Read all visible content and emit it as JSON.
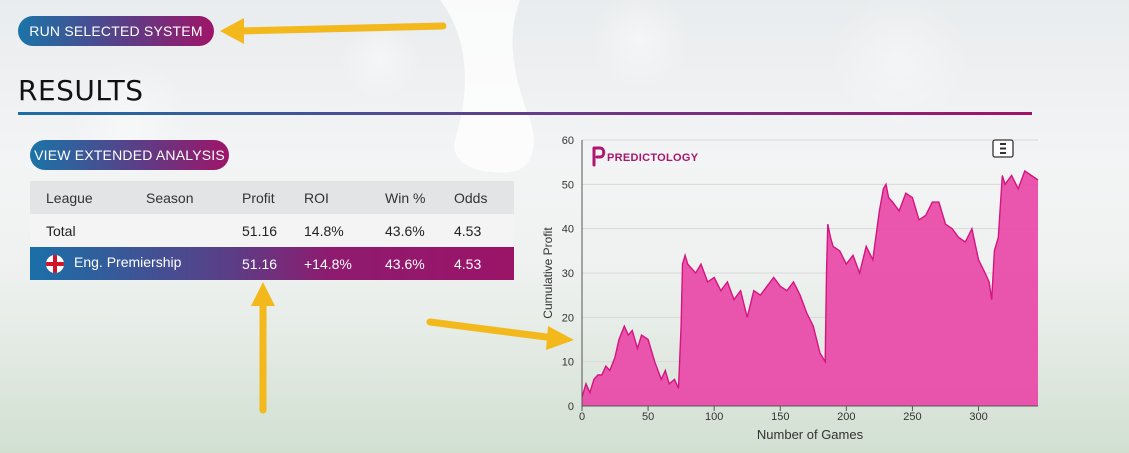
{
  "buttons": {
    "run_selected": "RUN SELECTED SYSTEM",
    "view_extended": "VIEW EXTENDED ANALYSIS"
  },
  "results": {
    "title": "RESULTS",
    "columns": [
      "League",
      "Season",
      "Profit",
      "ROI",
      "Win %",
      "Odds"
    ],
    "total": {
      "label": "Total",
      "season": "",
      "profit": "51.16",
      "roi": "14.8%",
      "win": "43.6%",
      "odds": "4.53"
    },
    "rows": [
      {
        "league": "Eng. Premiership",
        "flag": "england-flag-icon",
        "season": "",
        "profit": "51.16",
        "roi": "+14.8%",
        "win": "43.6%",
        "odds": "4.53"
      }
    ]
  },
  "colors": {
    "gradient_start": "#1a74a8",
    "gradient_end": "#9e1568",
    "area_fill": "#e94ca9",
    "area_stroke": "#d4157f",
    "arrow": "#f2b81c"
  },
  "chart_data": {
    "type": "area",
    "brand": "PREDICTOLOGY",
    "menu_icon": "hamburger-menu-icon",
    "xlabel": "Number of Games",
    "ylabel": "Cumulative Profit",
    "xlim": [
      0,
      345
    ],
    "ylim": [
      0,
      60
    ],
    "xticks": [
      0,
      50,
      100,
      150,
      200,
      250,
      300
    ],
    "yticks": [
      0,
      10,
      20,
      30,
      40,
      50,
      60
    ],
    "grid": true,
    "series": [
      {
        "x": [
          0,
          3,
          6,
          9,
          12,
          15,
          18,
          21,
          25,
          28,
          32,
          35,
          38,
          42,
          45,
          50,
          55,
          60,
          63,
          66,
          70,
          73,
          75,
          76,
          78,
          80,
          83,
          86,
          90,
          95,
          100,
          105,
          110,
          115,
          120,
          125,
          130,
          135,
          140,
          145,
          150,
          155,
          160,
          165,
          170,
          175,
          180,
          184,
          185,
          186,
          188,
          190,
          195,
          200,
          205,
          210,
          215,
          220,
          225,
          228,
          230,
          232,
          235,
          240,
          245,
          250,
          255,
          260,
          265,
          270,
          275,
          280,
          285,
          290,
          295,
          300,
          305,
          308,
          310,
          312,
          315,
          318,
          320,
          325,
          330,
          335,
          340,
          345
        ],
        "y": [
          2,
          5,
          3,
          6,
          7,
          7,
          9,
          8,
          11,
          15,
          18,
          16,
          17,
          13,
          16,
          15,
          10,
          6,
          8,
          5,
          6,
          4,
          18,
          32,
          34,
          32,
          31,
          30,
          32,
          28,
          29,
          26,
          28,
          24,
          26,
          20,
          26,
          25,
          27,
          29,
          27,
          26,
          28,
          25,
          21,
          18,
          12,
          10,
          30,
          41,
          38,
          36,
          35,
          32,
          34,
          30,
          36,
          33,
          44,
          49,
          50,
          47,
          46,
          44,
          48,
          47,
          42,
          43,
          46,
          46,
          41,
          40,
          38,
          37,
          40,
          33,
          30,
          28,
          24,
          35,
          38,
          52,
          50,
          52,
          49,
          53,
          52,
          51
        ]
      }
    ]
  }
}
